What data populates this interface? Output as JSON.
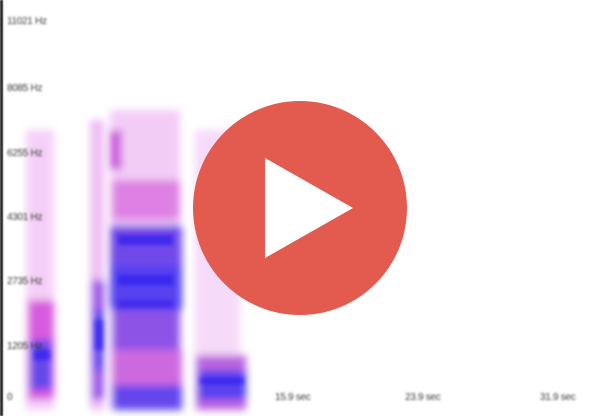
{
  "player": {
    "frequency_labels": [
      "11021 Hz",
      "8085 Hz",
      "6255 Hz",
      "4301 Hz",
      "2735 Hz",
      "1205 Hz",
      "0"
    ],
    "time_labels": [
      "15.9 sec",
      "23.9 sec",
      "31.9 sec"
    ],
    "play_icon": "play-icon",
    "colors": {
      "play_circle": "#e35b4e",
      "play_triangle": "#ffffff",
      "spectrogram_magenta": "#d13cd9",
      "spectrogram_blue": "#2a1ff0",
      "axis": "#2a2a2a"
    }
  }
}
